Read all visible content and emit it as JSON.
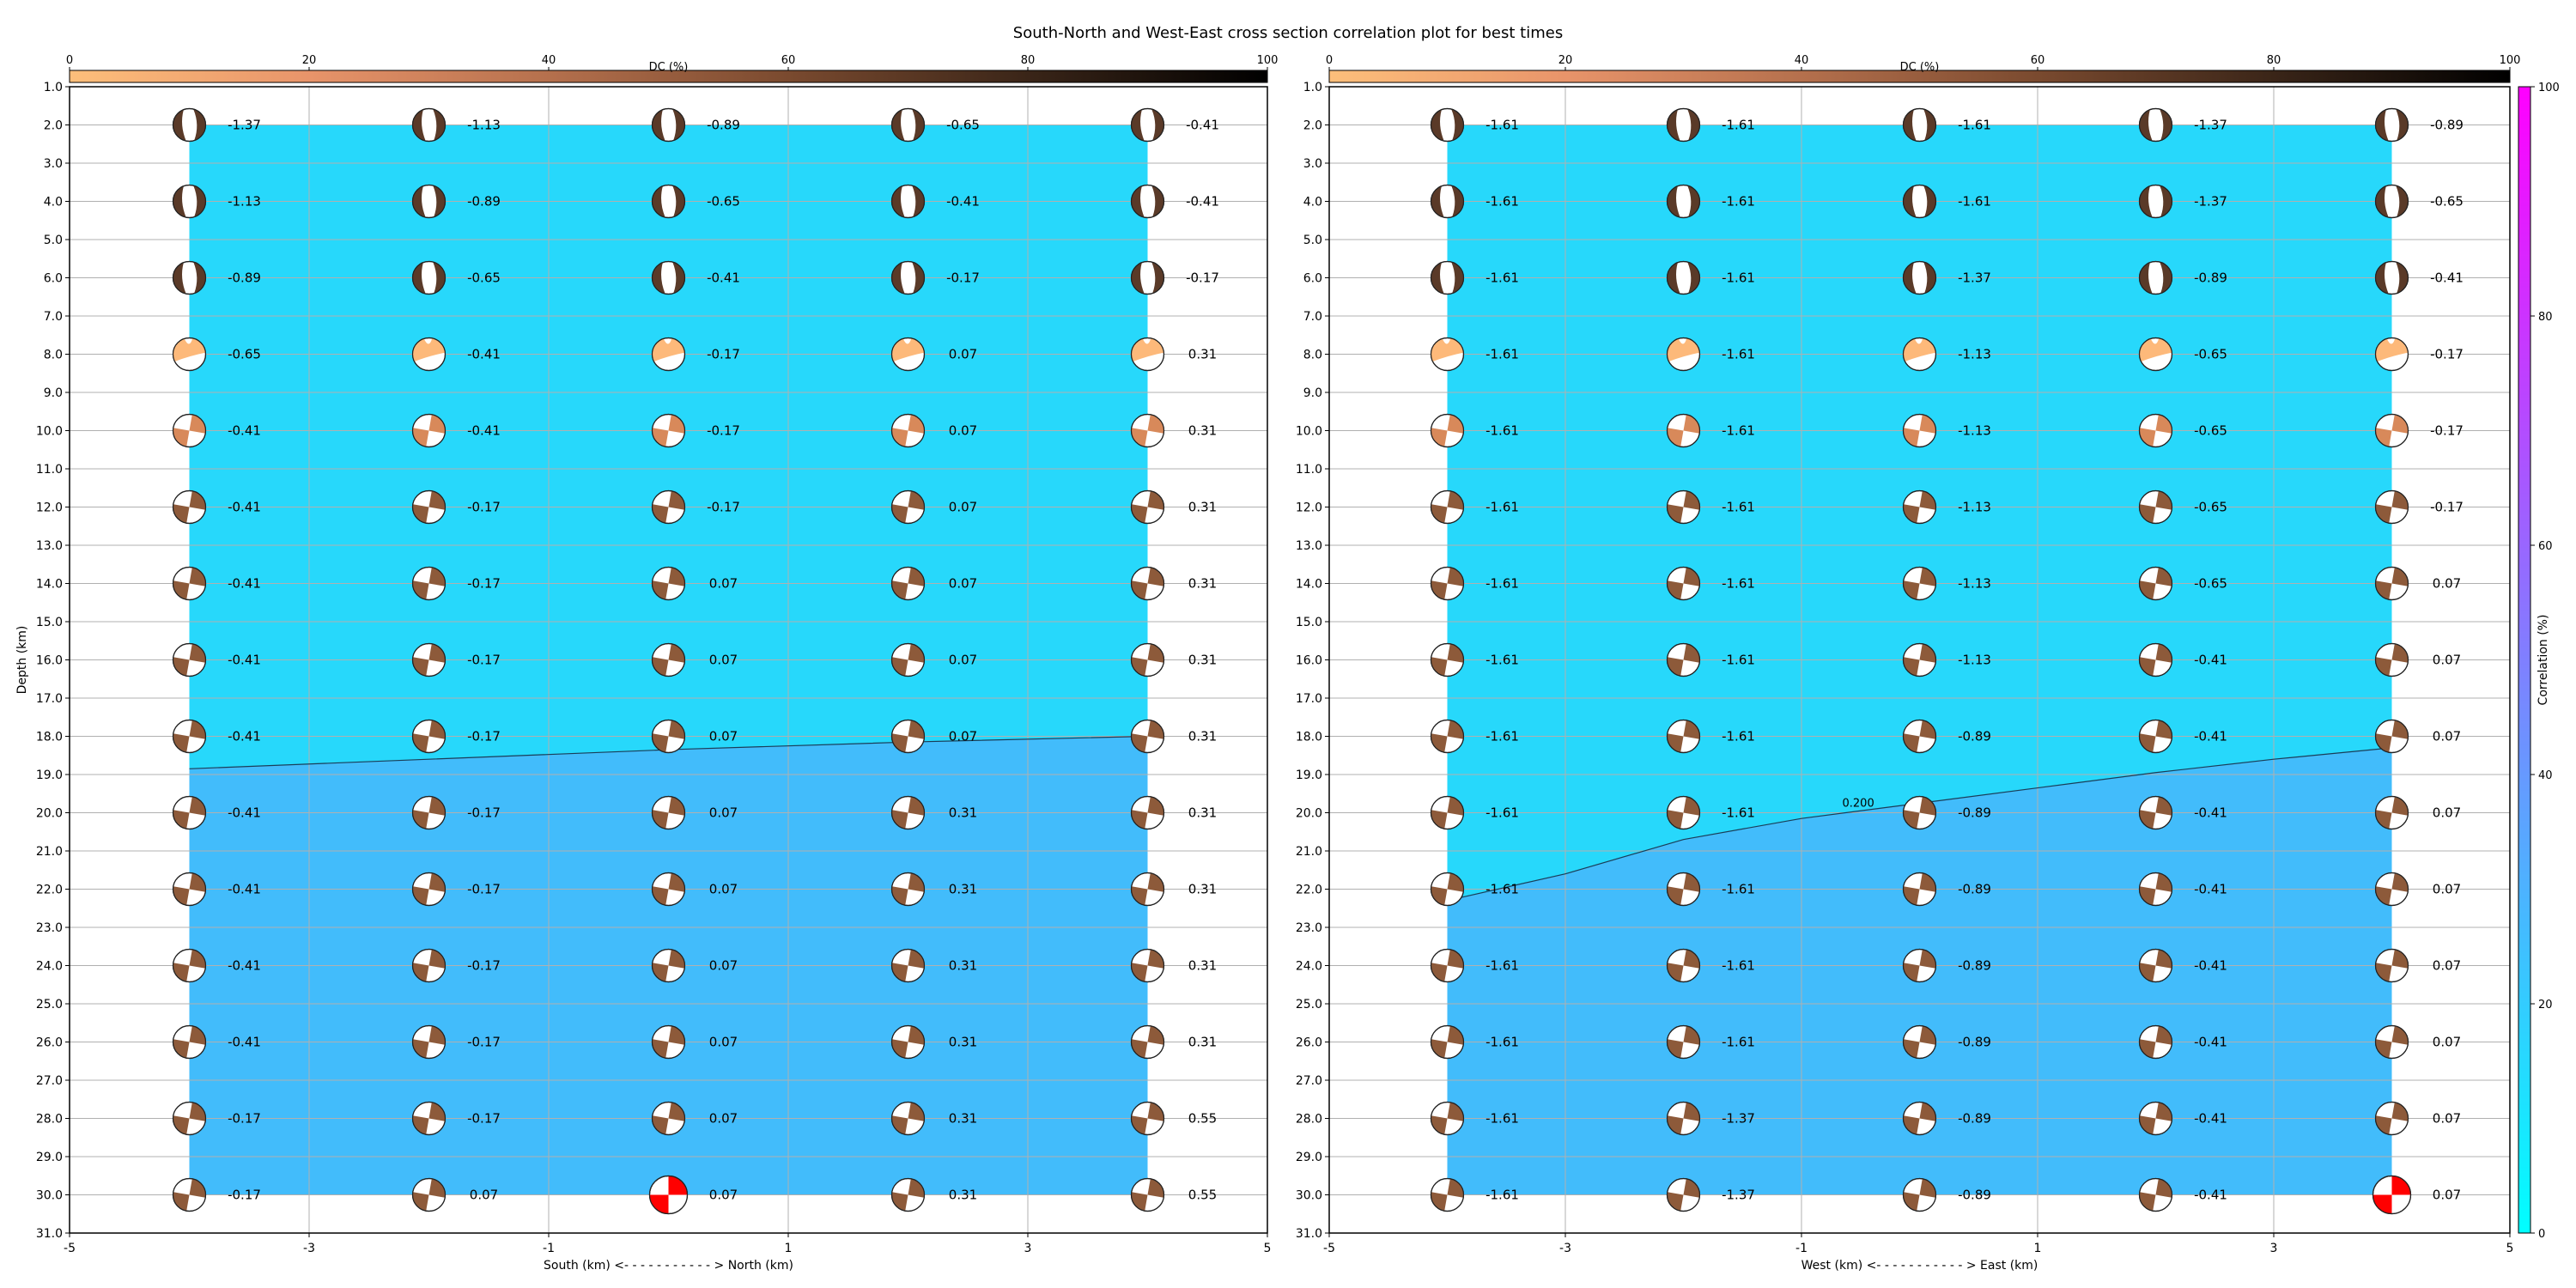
{
  "figure": {
    "title": "South-North and West-East cross section correlation plot for best times"
  },
  "dc_colorbar": {
    "label": "DC (%)",
    "ticks": [
      "0",
      "20",
      "40",
      "60",
      "80",
      "100"
    ],
    "colors": [
      "#fdbf7b",
      "#e8946a",
      "#b5704d",
      "#7a4a2f",
      "#3a2518",
      "#000000"
    ]
  },
  "corr_colorbar": {
    "label": "Correlation (%)",
    "ticks": [
      "0",
      "20",
      "40",
      "60",
      "80",
      "100"
    ],
    "colors": [
      "#00ffff",
      "#ff00ff"
    ]
  },
  "fill_colors": {
    "upper": "#27d8fb",
    "lower": "#42bcfb",
    "highlight": "#ff0000"
  },
  "chart_data": [
    {
      "type": "heatmap",
      "name": "south-north-section",
      "xlabel": "South (km) <- - - - - - - - - - - > North (km)",
      "ylabel": "Depth (km)",
      "xlim": [
        -5,
        5
      ],
      "ylim": [
        31,
        1
      ],
      "x_ticks": [
        -5,
        -3,
        -1,
        1,
        3,
        5
      ],
      "y_ticks": [
        1,
        2,
        3,
        4,
        5,
        6,
        7,
        8,
        9,
        10,
        11,
        12,
        13,
        14,
        15,
        16,
        17,
        18,
        19,
        20,
        21,
        22,
        23,
        24,
        25,
        26,
        27,
        28,
        29,
        30,
        31
      ],
      "x": [
        -4,
        -2,
        0,
        2,
        4
      ],
      "depths": [
        2,
        4,
        6,
        8,
        10,
        12,
        14,
        16,
        18,
        20,
        22,
        24,
        26,
        28,
        30
      ],
      "contour_label": "",
      "contour": [
        [
          -4,
          18.85
        ],
        [
          -2,
          18.6
        ],
        [
          0,
          18.35
        ],
        [
          2,
          18.15
        ],
        [
          4,
          18.0
        ]
      ],
      "labels": [
        [
          "-1.37",
          "-1.13",
          "-0.89",
          "-0.65",
          "-0.41"
        ],
        [
          "-1.13",
          "-0.89",
          "-0.65",
          "-0.41",
          "-0.41"
        ],
        [
          "-0.89",
          "-0.65",
          "-0.41",
          "-0.17",
          "-0.17"
        ],
        [
          "-0.65",
          "-0.41",
          "-0.17",
          "0.07",
          "0.31"
        ],
        [
          "-0.41",
          "-0.41",
          "-0.17",
          "0.07",
          "0.31"
        ],
        [
          "-0.41",
          "-0.17",
          "-0.17",
          "0.07",
          "0.31"
        ],
        [
          "-0.41",
          "-0.17",
          "0.07",
          "0.07",
          "0.31"
        ],
        [
          "-0.41",
          "-0.17",
          "0.07",
          "0.07",
          "0.31"
        ],
        [
          "-0.41",
          "-0.17",
          "0.07",
          "0.07",
          "0.31"
        ],
        [
          "-0.41",
          "-0.17",
          "0.07",
          "0.31",
          "0.31"
        ],
        [
          "-0.41",
          "-0.17",
          "0.07",
          "0.31",
          "0.31"
        ],
        [
          "-0.41",
          "-0.17",
          "0.07",
          "0.31",
          "0.31"
        ],
        [
          "-0.41",
          "-0.17",
          "0.07",
          "0.31",
          "0.31"
        ],
        [
          "-0.17",
          "-0.17",
          "0.07",
          "0.31",
          "0.55"
        ],
        [
          "-0.17",
          "0.07",
          "0.07",
          "0.31",
          "0.55"
        ]
      ],
      "highlight": [
        [
          14,
          2
        ]
      ]
    },
    {
      "type": "heatmap",
      "name": "west-east-section",
      "xlabel": "West (km) <- - - - - - - - - - - > East (km)",
      "ylabel": "",
      "xlim": [
        -5,
        5
      ],
      "ylim": [
        31,
        1
      ],
      "x_ticks": [
        -5,
        -3,
        -1,
        1,
        3,
        5
      ],
      "y_ticks": [
        1,
        2,
        3,
        4,
        5,
        6,
        7,
        8,
        9,
        10,
        11,
        12,
        13,
        14,
        15,
        16,
        17,
        18,
        19,
        20,
        21,
        22,
        23,
        24,
        25,
        26,
        27,
        28,
        29,
        30,
        31
      ],
      "x": [
        -4,
        -2,
        0,
        2,
        4
      ],
      "depths": [
        2,
        4,
        6,
        8,
        10,
        12,
        14,
        16,
        18,
        20,
        22,
        24,
        26,
        28,
        30
      ],
      "contour_label": "0.200",
      "contour": [
        [
          -4,
          22.3
        ],
        [
          -3,
          21.6
        ],
        [
          -2,
          20.7
        ],
        [
          -1,
          20.15
        ],
        [
          0,
          19.75
        ],
        [
          1,
          19.35
        ],
        [
          2,
          18.95
        ],
        [
          3,
          18.6
        ],
        [
          4,
          18.3
        ]
      ],
      "labels": [
        [
          "-1.61",
          "-1.61",
          "-1.61",
          "-1.37",
          "-0.89"
        ],
        [
          "-1.61",
          "-1.61",
          "-1.61",
          "-1.37",
          "-0.65"
        ],
        [
          "-1.61",
          "-1.61",
          "-1.37",
          "-0.89",
          "-0.41"
        ],
        [
          "-1.61",
          "-1.61",
          "-1.13",
          "-0.65",
          "-0.17"
        ],
        [
          "-1.61",
          "-1.61",
          "-1.13",
          "-0.65",
          "-0.17"
        ],
        [
          "-1.61",
          "-1.61",
          "-1.13",
          "-0.65",
          "-0.17"
        ],
        [
          "-1.61",
          "-1.61",
          "-1.13",
          "-0.65",
          "0.07"
        ],
        [
          "-1.61",
          "-1.61",
          "-1.13",
          "-0.41",
          "0.07"
        ],
        [
          "-1.61",
          "-1.61",
          "-0.89",
          "-0.41",
          "0.07"
        ],
        [
          "-1.61",
          "-1.61",
          "-0.89",
          "-0.41",
          "0.07"
        ],
        [
          "-1.61",
          "-1.61",
          "-0.89",
          "-0.41",
          "0.07"
        ],
        [
          "-1.61",
          "-1.61",
          "-0.89",
          "-0.41",
          "0.07"
        ],
        [
          "-1.61",
          "-1.61",
          "-0.89",
          "-0.41",
          "0.07"
        ],
        [
          "-1.61",
          "-1.37",
          "-0.89",
          "-0.41",
          "0.07"
        ],
        [
          "-1.61",
          "-1.37",
          "-0.89",
          "-0.41",
          "0.07"
        ]
      ],
      "highlight": [
        [
          14,
          4
        ]
      ]
    }
  ]
}
